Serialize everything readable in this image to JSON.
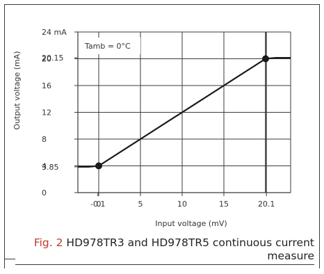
{
  "chart_data": {
    "type": "line",
    "title": "",
    "xlabel": "Input voltage (mV)",
    "ylabel": "Output voltage (mA)",
    "annotation": "Tamb = 0°C",
    "x_ticks": [
      {
        "value": -0.1,
        "label": "-0.1"
      },
      {
        "value": 0,
        "label": "0"
      },
      {
        "value": 5,
        "label": "5"
      },
      {
        "value": 10,
        "label": "10"
      },
      {
        "value": 15,
        "label": "15"
      },
      {
        "value": 20.1,
        "label": "20.1"
      }
    ],
    "x_extra_gridline": 20,
    "y_ticks": [
      {
        "value": 0,
        "label": "0"
      },
      {
        "value": 3.85,
        "label": "3.85"
      },
      {
        "value": 4,
        "label": "4"
      },
      {
        "value": 8,
        "label": "8"
      },
      {
        "value": 12,
        "label": "12"
      },
      {
        "value": 16,
        "label": "16"
      },
      {
        "value": 20,
        "label": "20"
      },
      {
        "value": 20.15,
        "label": "20.15"
      },
      {
        "value": 24,
        "label": "24 mA"
      }
    ],
    "series": [
      {
        "points": [
          {
            "x": -2.5,
            "y": 3.85
          },
          {
            "x": -1.2,
            "y": 3.85
          },
          {
            "x": 0,
            "y": 4
          },
          {
            "x": 20,
            "y": 20
          },
          {
            "x": 21.2,
            "y": 20.15
          },
          {
            "x": 23,
            "y": 20.15
          }
        ]
      }
    ],
    "markers": [
      {
        "x": 0,
        "y": 4
      },
      {
        "x": 20,
        "y": 20
      }
    ],
    "grid": true
  },
  "caption": {
    "label": "Fig. 2",
    "text": " HD978TR3 and HD978TR5 continuous current measure"
  }
}
